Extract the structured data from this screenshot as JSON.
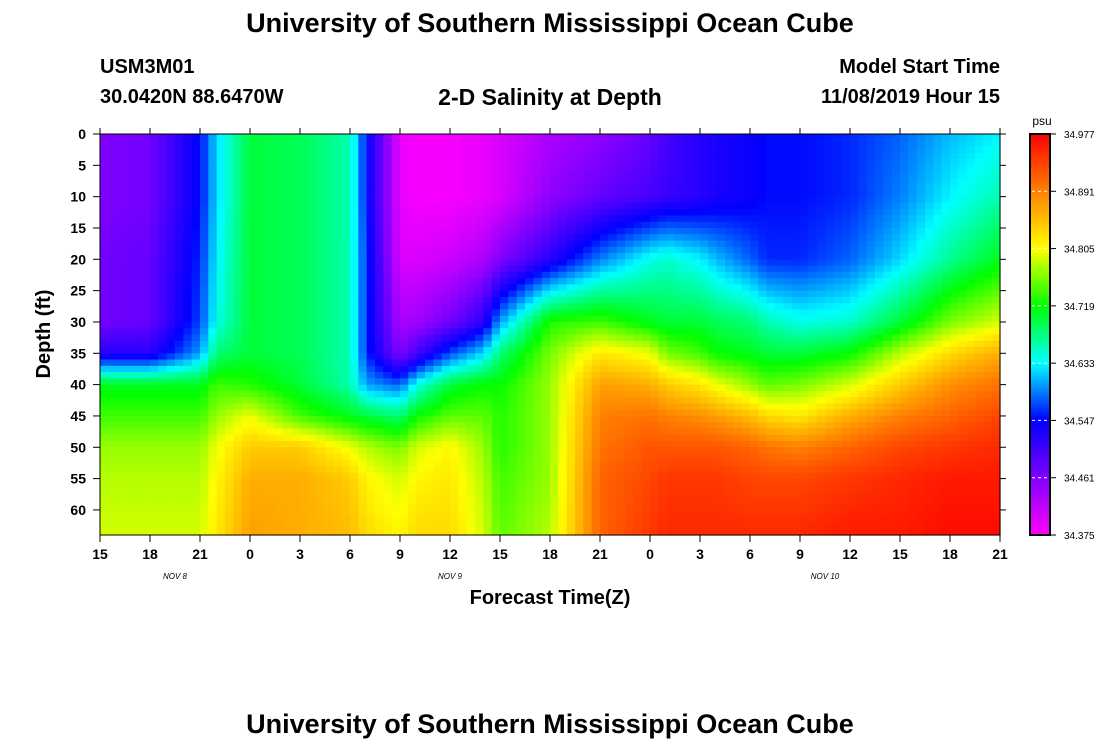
{
  "header": {
    "title": "University of Southern Mississippi Ocean Cube",
    "station_id": "USM3M01",
    "location": "30.0420N 88.6470W",
    "chart_title": "2-D Salinity at Depth",
    "model_label": "Model Start Time",
    "model_time": "11/08/2019 Hour 15"
  },
  "footer": {
    "title": "University of Southern Mississippi Ocean Cube"
  },
  "chart_data": {
    "type": "heatmap",
    "title": "2-D Salinity at Depth",
    "xlabel": "Forecast Time(Z)",
    "ylabel": "Depth (ft)",
    "x_ticks": [
      "15",
      "18",
      "21",
      "0",
      "3",
      "6",
      "9",
      "12",
      "15",
      "18",
      "21",
      "0",
      "3",
      "6",
      "9",
      "12",
      "15",
      "18",
      "21"
    ],
    "x_range_hours": [
      0,
      54
    ],
    "day_labels": [
      {
        "label": "NOV 8",
        "hour": 4.5
      },
      {
        "label": "NOV 9",
        "hour": 21
      },
      {
        "label": "NOV 10",
        "hour": 43.5
      }
    ],
    "y_ticks": [
      0,
      5,
      10,
      15,
      20,
      25,
      30,
      35,
      40,
      45,
      50,
      55,
      60
    ],
    "ylim": [
      0,
      64
    ],
    "y_inverted": true,
    "colorbar": {
      "unit": "psu",
      "min": 34.375,
      "max": 34.977,
      "ticks": [
        "34.977",
        "34.891",
        "34.805",
        "34.719",
        "34.633",
        "34.547",
        "34.461",
        "34.375"
      ]
    },
    "colormap": [
      "#ff00ff",
      "#8000ff",
      "#0000ff",
      "#00ffff",
      "#00ff00",
      "#ffff00",
      "#ff8000",
      "#ff0000"
    ],
    "approx_values": {
      "hours": [
        0,
        3,
        6,
        7,
        9,
        12,
        15,
        16,
        18,
        19,
        21,
        23,
        24,
        27,
        30,
        33,
        34,
        36,
        37,
        39,
        40,
        42,
        45,
        48,
        51,
        54
      ],
      "depths": [
        0,
        10,
        20,
        30,
        35,
        40,
        45,
        50,
        55,
        64
      ],
      "values": [
        [
          34.46,
          34.46,
          34.47,
          34.47,
          34.52,
          34.71,
          34.74,
          34.77,
          34.78,
          34.79
        ],
        [
          34.47,
          34.47,
          34.48,
          34.48,
          34.52,
          34.71,
          34.74,
          34.77,
          34.78,
          34.79
        ],
        [
          34.55,
          34.55,
          34.56,
          34.57,
          34.6,
          34.71,
          34.74,
          34.77,
          34.78,
          34.79
        ],
        [
          34.62,
          34.62,
          34.63,
          34.64,
          34.68,
          34.74,
          34.77,
          34.8,
          34.81,
          34.82
        ],
        [
          34.7,
          34.7,
          34.7,
          34.7,
          34.7,
          34.73,
          34.8,
          34.84,
          34.86,
          34.87
        ],
        [
          34.69,
          34.69,
          34.69,
          34.69,
          34.69,
          34.7,
          34.74,
          34.84,
          34.86,
          34.86
        ],
        [
          34.66,
          34.66,
          34.66,
          34.66,
          34.66,
          34.66,
          34.71,
          34.8,
          34.84,
          34.85
        ],
        [
          34.55,
          34.55,
          34.56,
          34.56,
          34.56,
          34.6,
          34.7,
          34.78,
          34.81,
          34.83
        ],
        [
          34.39,
          34.39,
          34.4,
          34.43,
          34.46,
          34.58,
          34.68,
          34.76,
          34.79,
          34.81
        ],
        [
          34.38,
          34.38,
          34.4,
          34.44,
          34.5,
          34.64,
          34.72,
          34.79,
          34.81,
          34.83
        ],
        [
          34.38,
          34.38,
          34.41,
          34.47,
          34.57,
          34.7,
          34.75,
          34.81,
          34.82,
          34.83
        ],
        [
          34.39,
          34.39,
          34.43,
          34.52,
          34.62,
          34.72,
          34.75,
          34.77,
          34.78,
          34.79
        ],
        [
          34.4,
          34.4,
          34.46,
          34.6,
          34.68,
          34.72,
          34.73,
          34.73,
          34.74,
          34.75
        ],
        [
          34.43,
          34.45,
          34.52,
          34.73,
          34.76,
          34.77,
          34.77,
          34.77,
          34.77,
          34.78
        ],
        [
          34.45,
          34.48,
          34.59,
          34.74,
          34.82,
          34.87,
          34.89,
          34.9,
          34.91,
          34.91
        ],
        [
          34.48,
          34.5,
          34.64,
          34.71,
          34.8,
          34.86,
          34.9,
          34.92,
          34.93,
          34.94
        ],
        [
          34.5,
          34.51,
          34.65,
          34.7,
          34.76,
          34.84,
          34.89,
          34.92,
          34.94,
          34.95
        ],
        [
          34.52,
          34.52,
          34.63,
          34.7,
          34.74,
          34.82,
          34.88,
          34.92,
          34.94,
          34.95
        ],
        [
          34.53,
          34.53,
          34.61,
          34.69,
          34.72,
          34.8,
          34.87,
          34.92,
          34.94,
          34.95
        ],
        [
          34.54,
          34.54,
          34.58,
          34.68,
          34.71,
          34.77,
          34.85,
          34.91,
          34.93,
          34.95
        ],
        [
          34.55,
          34.55,
          34.56,
          34.66,
          34.7,
          34.75,
          34.83,
          34.9,
          34.93,
          34.95
        ],
        [
          34.55,
          34.55,
          34.56,
          34.64,
          34.7,
          34.76,
          34.82,
          34.89,
          34.93,
          34.95
        ],
        [
          34.56,
          34.56,
          34.58,
          34.65,
          34.72,
          34.79,
          34.86,
          34.91,
          34.94,
          34.96
        ],
        [
          34.58,
          34.59,
          34.62,
          34.7,
          34.78,
          34.84,
          34.89,
          34.93,
          34.95,
          34.96
        ],
        [
          34.61,
          34.63,
          34.67,
          34.76,
          34.83,
          34.88,
          34.91,
          34.94,
          34.96,
          34.97
        ],
        [
          34.63,
          34.66,
          34.71,
          34.79,
          34.86,
          34.9,
          34.93,
          34.95,
          34.96,
          34.97
        ]
      ]
    }
  }
}
